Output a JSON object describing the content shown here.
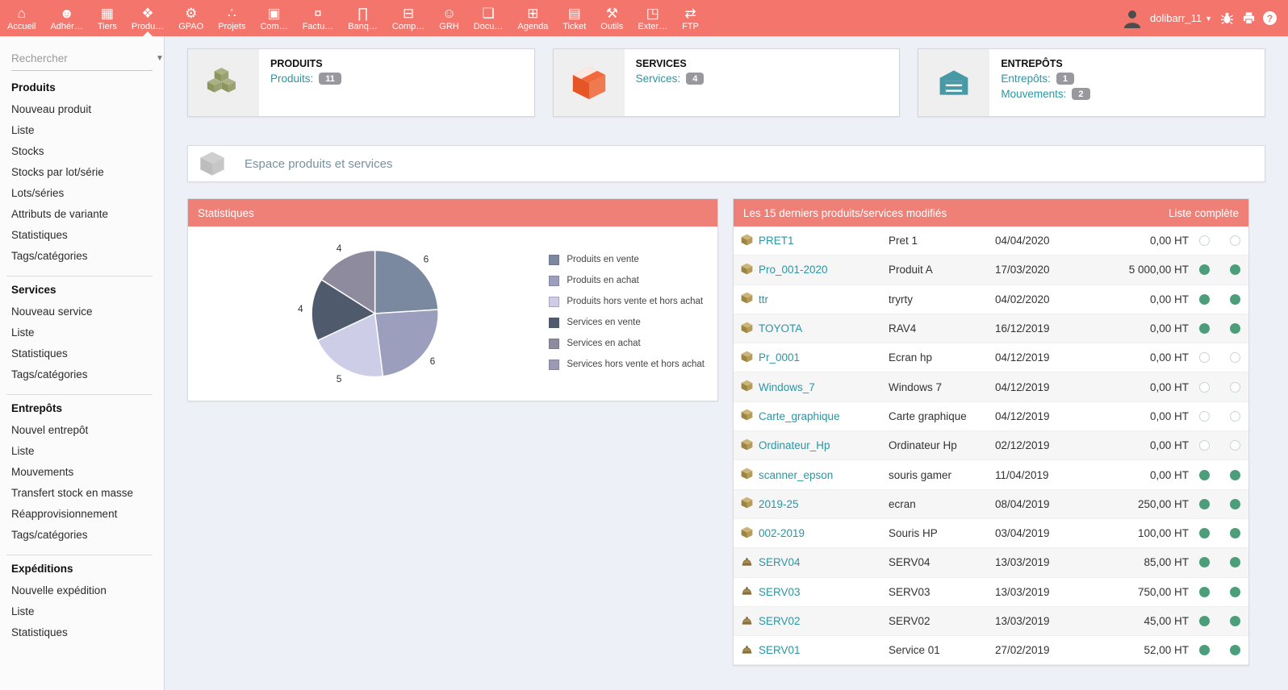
{
  "topnav": {
    "items": [
      {
        "label": "Accueil",
        "icon": "home",
        "active": false
      },
      {
        "label": "Adhér…",
        "icon": "members",
        "active": false
      },
      {
        "label": "Tiers",
        "icon": "third-parties",
        "active": false
      },
      {
        "label": "Produ…",
        "icon": "products",
        "active": true
      },
      {
        "label": "GPAO",
        "icon": "mrp",
        "active": false
      },
      {
        "label": "Projets",
        "icon": "projects",
        "active": false
      },
      {
        "label": "Com…",
        "icon": "commerce",
        "active": false
      },
      {
        "label": "Factu…",
        "icon": "billing",
        "active": false
      },
      {
        "label": "Banq…",
        "icon": "bank",
        "active": false
      },
      {
        "label": "Comp…",
        "icon": "accountancy",
        "active": false
      },
      {
        "label": "GRH",
        "icon": "hrm",
        "active": false
      },
      {
        "label": "Docu…",
        "icon": "documents",
        "active": false
      },
      {
        "label": "Agenda",
        "icon": "agenda",
        "active": false
      },
      {
        "label": "Ticket",
        "icon": "ticket",
        "active": false
      },
      {
        "label": "Outils",
        "icon": "tools",
        "active": false
      },
      {
        "label": "Exter…",
        "icon": "external-site",
        "active": false
      },
      {
        "label": "FTP",
        "icon": "ftp",
        "active": false
      }
    ],
    "username": "dolibarr_11"
  },
  "sidebar": {
    "search_placeholder": "Rechercher",
    "sections": [
      {
        "title": "Produits",
        "items": [
          "Nouveau produit",
          "Liste",
          "Stocks",
          "Stocks par lot/série",
          "Lots/séries",
          "Attributs de variante",
          "Statistiques",
          "Tags/catégories"
        ]
      },
      {
        "title": "Services",
        "items": [
          "Nouveau service",
          "Liste",
          "Statistiques",
          "Tags/catégories"
        ]
      },
      {
        "title": "Entrepôts",
        "items": [
          "Nouvel entrepôt",
          "Liste",
          "Mouvements",
          "Transfert stock en masse",
          "Réapprovisionnement",
          "Tags/catégories"
        ]
      },
      {
        "title": "Expéditions",
        "items": [
          "Nouvelle expédition",
          "Liste",
          "Statistiques"
        ]
      }
    ]
  },
  "boxes": [
    {
      "title": "PRODUITS",
      "icon": "product-cubes",
      "links": [
        {
          "label": "Produits:",
          "badge": "11"
        }
      ]
    },
    {
      "title": "SERVICES",
      "icon": "service-box",
      "links": [
        {
          "label": "Services:",
          "badge": "4"
        }
      ]
    },
    {
      "title": "ENTREPÔTS",
      "icon": "warehouse",
      "links": [
        {
          "label": "Entrepôts:",
          "badge": "1"
        },
        {
          "label": "Mouvements:",
          "badge": "2"
        }
      ]
    }
  ],
  "banner": {
    "title": "Espace produits et services"
  },
  "stats_panel": {
    "title": "Statistiques"
  },
  "chart_data": {
    "type": "pie",
    "title": "Statistiques",
    "labels": [
      "Produits en vente",
      "Produits en achat",
      "Produits hors vente et hors achat",
      "Services en vente",
      "Services en achat",
      "Services hors vente et hors achat"
    ],
    "values": [
      6,
      6,
      5,
      4,
      4,
      0
    ],
    "colors": [
      "#7b89a0",
      "#9b9ebc",
      "#cdcde8",
      "#4f5b6d",
      "#8e8b9f",
      "#9a9ab5"
    ],
    "legend_position": "right",
    "start_angle_deg": 0,
    "direction": "clockwise"
  },
  "table": {
    "title": "Les 15 derniers produits/services modifiés",
    "link": "Liste complète",
    "rows": [
      {
        "type": "product",
        "ref": "PRET1",
        "label": "Pret 1",
        "date": "04/04/2020",
        "price": "0,00 HT",
        "sell": false,
        "buy": false
      },
      {
        "type": "product",
        "ref": "Pro_001-2020",
        "label": "Produit A",
        "date": "17/03/2020",
        "price": "5 000,00 HT",
        "sell": true,
        "buy": true
      },
      {
        "type": "product",
        "ref": "ttr",
        "label": "tryrty",
        "date": "04/02/2020",
        "price": "0,00 HT",
        "sell": true,
        "buy": true
      },
      {
        "type": "product",
        "ref": "TOYOTA",
        "label": "RAV4",
        "date": "16/12/2019",
        "price": "0,00 HT",
        "sell": true,
        "buy": true
      },
      {
        "type": "product",
        "ref": "Pr_0001",
        "label": "Ecran hp",
        "date": "04/12/2019",
        "price": "0,00 HT",
        "sell": false,
        "buy": false
      },
      {
        "type": "product",
        "ref": "Windows_7",
        "label": "Windows 7",
        "date": "04/12/2019",
        "price": "0,00 HT",
        "sell": false,
        "buy": false
      },
      {
        "type": "product",
        "ref": "Carte_graphique",
        "label": "Carte graphique",
        "date": "04/12/2019",
        "price": "0,00 HT",
        "sell": false,
        "buy": false
      },
      {
        "type": "product",
        "ref": "Ordinateur_Hp",
        "label": "Ordinateur Hp",
        "date": "02/12/2019",
        "price": "0,00 HT",
        "sell": false,
        "buy": false
      },
      {
        "type": "product",
        "ref": "scanner_epson",
        "label": "souris gamer",
        "date": "11/04/2019",
        "price": "0,00 HT",
        "sell": true,
        "buy": true
      },
      {
        "type": "product",
        "ref": "2019-25",
        "label": "ecran",
        "date": "08/04/2019",
        "price": "250,00 HT",
        "sell": true,
        "buy": true
      },
      {
        "type": "product",
        "ref": "002-2019",
        "label": "Souris HP",
        "date": "03/04/2019",
        "price": "100,00 HT",
        "sell": true,
        "buy": true
      },
      {
        "type": "service",
        "ref": "SERV04",
        "label": "SERV04",
        "date": "13/03/2019",
        "price": "85,00 HT",
        "sell": true,
        "buy": true
      },
      {
        "type": "service",
        "ref": "SERV03",
        "label": "SERV03",
        "date": "13/03/2019",
        "price": "750,00 HT",
        "sell": true,
        "buy": true
      },
      {
        "type": "service",
        "ref": "SERV02",
        "label": "SERV02",
        "date": "13/03/2019",
        "price": "45,00 HT",
        "sell": true,
        "buy": true
      },
      {
        "type": "service",
        "ref": "SERV01",
        "label": "Service 01",
        "date": "27/02/2019",
        "price": "52,00 HT",
        "sell": true,
        "buy": true
      }
    ]
  },
  "colors": {
    "navbar": "#f3756c",
    "panel_header": "#ee8078",
    "link_teal": "#2996a3",
    "status_green": "#4c9d7a",
    "badge_gray": "#98989e",
    "product_icon_olive": "#9aa06f",
    "service_icon_orange": "#f4693c",
    "warehouse_icon_teal": "#4899a6"
  }
}
